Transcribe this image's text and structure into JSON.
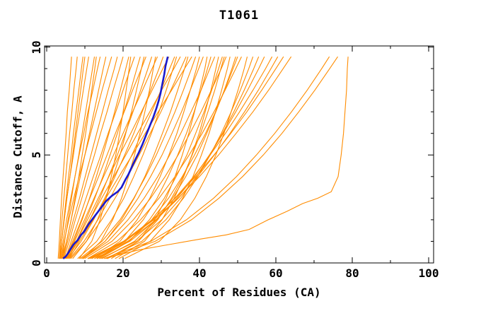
{
  "chart_data": {
    "type": "line",
    "title": "T1061",
    "xlabel": "Percent of Residues (CA)",
    "ylabel": "Distance Cutoff, A",
    "xlim": [
      0,
      100
    ],
    "ylim": [
      0,
      10
    ],
    "grid": false,
    "legend": "none",
    "x_major_ticks": [
      0,
      20,
      40,
      60,
      80,
      100
    ],
    "x_minor_ticks": [
      10,
      30,
      50,
      70,
      90
    ],
    "y_major_ticks": [
      0,
      5,
      10
    ],
    "y_minor_ticks": [
      1,
      2,
      3,
      4,
      6,
      7,
      8,
      9
    ],
    "colors": {
      "model_curves": "#ff8c00",
      "highlight_curve": "#1a1acd",
      "axis": "#000000",
      "background": "#ffffff"
    },
    "curves": {
      "description": "Per-model accuracy curves: percent of CA residues (x) under each distance cutoff in Angstroms (y). Orange = server models, blue = highlighted model.",
      "y_samples": [
        0.2,
        1,
        2,
        3,
        4,
        5,
        6,
        7,
        8,
        9,
        9.55
      ],
      "orange_x": [
        [
          3.0,
          3.3,
          3.6,
          3.9,
          4.3,
          4.7,
          5.1,
          5.4,
          5.9,
          6.3,
          6.5
        ],
        [
          3.3,
          3.6,
          4.0,
          4.5,
          5.0,
          5.5,
          6.0,
          6.6,
          7.1,
          7.7,
          8.0
        ],
        [
          3.6,
          3.9,
          4.5,
          5.1,
          5.7,
          6.4,
          7.0,
          7.7,
          8.4,
          9.1,
          9.5
        ],
        [
          3.4,
          3.9,
          4.6,
          5.3,
          6.1,
          7.0,
          7.8,
          8.7,
          9.6,
          10.5,
          11.0
        ],
        [
          3.3,
          3.9,
          4.6,
          5.3,
          6.1,
          6.8,
          7.5,
          8.2,
          8.9,
          9.6,
          10.0
        ],
        [
          4.0,
          4.7,
          5.6,
          6.5,
          7.4,
          8.4,
          9.3,
          10.2,
          11.1,
          12.0,
          12.5
        ],
        [
          3.9,
          5.2,
          6.4,
          7.4,
          8.4,
          9.3,
          10.2,
          11.0,
          11.8,
          12.6,
          13.0
        ],
        [
          3.6,
          4.3,
          5.2,
          6.3,
          7.4,
          8.5,
          9.7,
          10.8,
          12.1,
          13.3,
          14.0
        ],
        [
          4.2,
          5.2,
          6.4,
          7.6,
          8.8,
          10.0,
          11.2,
          12.4,
          13.6,
          14.8,
          15.5
        ],
        [
          3.8,
          4.6,
          5.8,
          7.1,
          8.5,
          10.0,
          11.5,
          13.0,
          14.5,
          16.1,
          17.0
        ],
        [
          4.3,
          5.5,
          7.0,
          8.6,
          10.1,
          11.6,
          13.1,
          14.6,
          16.1,
          17.7,
          18.5
        ],
        [
          4.5,
          5.9,
          7.5,
          9.2,
          10.8,
          12.5,
          14.1,
          15.8,
          17.4,
          19.1,
          20.0
        ],
        [
          4.8,
          7.1,
          9.3,
          11.2,
          13.0,
          14.7,
          16.3,
          17.8,
          19.3,
          20.7,
          21.5
        ],
        [
          8.5,
          11.8,
          14.0,
          15.6,
          16.9,
          18.1,
          19.1,
          20.0,
          20.8,
          21.6,
          22.0
        ],
        [
          4.9,
          6.4,
          8.4,
          10.3,
          12.2,
          14.2,
          16.1,
          18.1,
          20.0,
          21.9,
          23.0
        ],
        [
          5.1,
          7.8,
          10.3,
          12.6,
          14.7,
          16.6,
          18.5,
          20.2,
          22.0,
          23.6,
          24.5
        ],
        [
          6.8,
          10.4,
          13.3,
          15.5,
          17.4,
          19.2,
          20.7,
          22.2,
          23.5,
          24.8,
          25.5
        ],
        [
          5.0,
          6.8,
          9.1,
          11.3,
          13.6,
          15.8,
          18.0,
          20.3,
          22.5,
          24.8,
          26.0
        ],
        [
          5.3,
          8.3,
          11.3,
          13.9,
          16.2,
          18.5,
          20.6,
          22.6,
          24.6,
          26.5,
          27.5
        ],
        [
          9.5,
          14.2,
          17.3,
          19.6,
          21.4,
          23.0,
          24.4,
          25.7,
          26.9,
          27.9,
          28.5
        ],
        [
          5.3,
          7.3,
          9.9,
          12.4,
          14.9,
          17.5,
          20.0,
          22.5,
          25.1,
          27.6,
          29.0
        ],
        [
          5.6,
          9.0,
          12.3,
          15.2,
          17.9,
          20.4,
          22.8,
          25.0,
          27.2,
          29.4,
          30.5
        ],
        [
          5.6,
          7.8,
          10.7,
          13.5,
          16.3,
          19.1,
          22.0,
          24.8,
          27.6,
          30.4,
          32.0
        ],
        [
          6.0,
          9.8,
          13.4,
          16.6,
          19.6,
          22.3,
          24.9,
          27.5,
          29.9,
          32.2,
          33.5
        ],
        [
          8.1,
          13.1,
          17.0,
          20.2,
          22.8,
          25.2,
          27.4,
          29.4,
          31.3,
          33.1,
          34.0
        ],
        [
          5.6,
          8.1,
          11.3,
          14.4,
          17.6,
          20.7,
          23.8,
          27.0,
          30.1,
          33.3,
          35.0
        ],
        [
          6.3,
          10.4,
          14.4,
          17.9,
          21.2,
          24.2,
          27.1,
          29.9,
          32.5,
          35.1,
          36.5
        ],
        [
          9.5,
          15.3,
          19.6,
          22.9,
          25.7,
          28.1,
          30.3,
          32.4,
          34.3,
          36.1,
          37.0
        ],
        [
          5.9,
          8.6,
          12.1,
          15.5,
          18.9,
          22.4,
          25.8,
          29.2,
          32.7,
          36.1,
          38.0
        ],
        [
          8.7,
          14.5,
          19.2,
          22.8,
          25.9,
          28.7,
          31.2,
          33.6,
          35.8,
          37.9,
          39.0
        ],
        [
          12.5,
          19.2,
          23.7,
          27.0,
          29.7,
          32.0,
          34.1,
          35.9,
          37.6,
          39.2,
          40.0
        ],
        [
          9.1,
          15.3,
          20.1,
          23.9,
          27.2,
          30.2,
          32.8,
          35.3,
          37.6,
          39.8,
          41.0
        ],
        [
          16.9,
          24.0,
          28.3,
          31.3,
          33.6,
          35.5,
          37.2,
          38.7,
          40.1,
          41.4,
          42.0
        ],
        [
          13.1,
          20.4,
          25.3,
          28.9,
          31.8,
          34.3,
          36.6,
          38.6,
          40.4,
          42.1,
          43.0
        ],
        [
          9.4,
          16.1,
          21.3,
          25.5,
          29.1,
          32.2,
          35.1,
          37.8,
          40.4,
          42.7,
          44.0
        ],
        [
          17.9,
          25.6,
          30.2,
          33.4,
          35.9,
          38.0,
          39.9,
          41.5,
          43.0,
          44.3,
          45.0
        ],
        [
          13.7,
          21.6,
          26.9,
          30.8,
          33.9,
          36.7,
          39.0,
          41.2,
          43.2,
          45.0,
          46.0
        ],
        [
          15.9,
          24.0,
          29.1,
          32.7,
          35.7,
          38.1,
          40.3,
          42.2,
          44.0,
          45.6,
          46.5
        ],
        [
          9.9,
          17.1,
          22.7,
          27.2,
          31.0,
          34.4,
          37.5,
          40.4,
          43.1,
          45.7,
          47.0
        ],
        [
          18.9,
          27.1,
          32.1,
          35.6,
          38.3,
          40.5,
          42.5,
          44.2,
          45.8,
          47.3,
          48.0
        ],
        [
          14.5,
          23.0,
          28.8,
          33.0,
          36.4,
          39.4,
          41.9,
          44.3,
          46.5,
          48.5,
          49.5
        ],
        [
          13.2,
          21.5,
          27.5,
          31.9,
          35.5,
          38.7,
          41.6,
          44.2,
          46.6,
          48.8,
          50.0
        ],
        [
          10.7,
          18.4,
          24.6,
          29.4,
          33.6,
          37.3,
          40.7,
          43.8,
          46.7,
          49.5,
          51.0
        ],
        [
          20.4,
          29.5,
          35.0,
          38.8,
          41.8,
          44.3,
          46.4,
          48.3,
          50.1,
          51.7,
          52.5
        ],
        [
          15.4,
          24.9,
          31.2,
          35.8,
          39.6,
          42.8,
          45.7,
          48.3,
          50.7,
          52.9,
          54.0
        ],
        [
          14.1,
          23.5,
          30.1,
          35.1,
          39.2,
          42.8,
          46.0,
          49.0,
          51.7,
          54.2,
          55.5
        ],
        [
          12.5,
          21.8,
          28.8,
          34.1,
          38.7,
          42.6,
          46.2,
          49.5,
          52.6,
          55.5,
          57.0
        ],
        [
          11.4,
          20.6,
          27.8,
          33.6,
          38.5,
          42.8,
          46.8,
          50.5,
          54.0,
          57.3,
          59.0
        ],
        [
          11.8,
          21.2,
          28.6,
          34.5,
          39.5,
          43.9,
          48.0,
          51.8,
          55.4,
          58.7,
          60.5
        ],
        [
          11.0,
          20.1,
          27.6,
          33.7,
          39.0,
          43.8,
          48.2,
          52.4,
          56.3,
          60.0,
          62.0
        ],
        [
          10.8,
          20.2,
          28.1,
          34.4,
          40.0,
          45.0,
          49.6,
          54.0,
          58.1,
          61.9,
          64.0
        ],
        [
          15.0,
          27.3,
          36.6,
          43.7,
          49.7,
          54.9,
          59.7,
          64.1,
          68.2,
          72.0,
          74.0
        ],
        [
          15.7,
          28.4,
          37.9,
          45.1,
          51.3,
          56.7,
          61.6,
          66.0,
          70.2,
          74.1,
          76.2
        ]
      ],
      "orange_special": [
        [
          [
            16.0,
            0.25
          ],
          [
            24.0,
            0.6
          ],
          [
            32.0,
            0.85
          ],
          [
            40.0,
            1.1
          ],
          [
            47.0,
            1.3
          ],
          [
            53.0,
            1.55
          ],
          [
            58.0,
            2.0
          ],
          [
            63.0,
            2.4
          ],
          [
            67.0,
            2.75
          ],
          [
            71.0,
            3.0
          ],
          [
            74.5,
            3.3
          ],
          [
            76.3,
            4.0
          ],
          [
            77.1,
            5.0
          ],
          [
            77.7,
            6.0
          ],
          [
            78.1,
            7.0
          ],
          [
            78.5,
            8.0
          ],
          [
            78.7,
            9.0
          ],
          [
            78.9,
            9.55
          ]
        ]
      ],
      "blue": [
        [
          4.3,
          0.2
        ],
        [
          5.0,
          0.3
        ],
        [
          5.6,
          0.45
        ],
        [
          6.1,
          0.6
        ],
        [
          7.0,
          0.85
        ],
        [
          8.1,
          1.05
        ],
        [
          9.0,
          1.3
        ],
        [
          9.8,
          1.45
        ],
        [
          11.0,
          1.8
        ],
        [
          12.5,
          2.15
        ],
        [
          14.0,
          2.5
        ],
        [
          15.5,
          2.85
        ],
        [
          17.0,
          3.1
        ],
        [
          18.6,
          3.3
        ],
        [
          19.6,
          3.5
        ],
        [
          20.6,
          3.85
        ],
        [
          21.4,
          4.1
        ],
        [
          22.3,
          4.45
        ],
        [
          23.1,
          4.75
        ],
        [
          24.1,
          5.1
        ],
        [
          25.1,
          5.5
        ],
        [
          26.1,
          5.95
        ],
        [
          27.0,
          6.35
        ],
        [
          27.9,
          6.75
        ],
        [
          28.7,
          7.15
        ],
        [
          29.3,
          7.5
        ],
        [
          29.8,
          7.85
        ],
        [
          30.3,
          8.3
        ],
        [
          30.8,
          8.75
        ],
        [
          31.1,
          9.1
        ],
        [
          31.5,
          9.4
        ],
        [
          31.7,
          9.55
        ]
      ]
    }
  }
}
